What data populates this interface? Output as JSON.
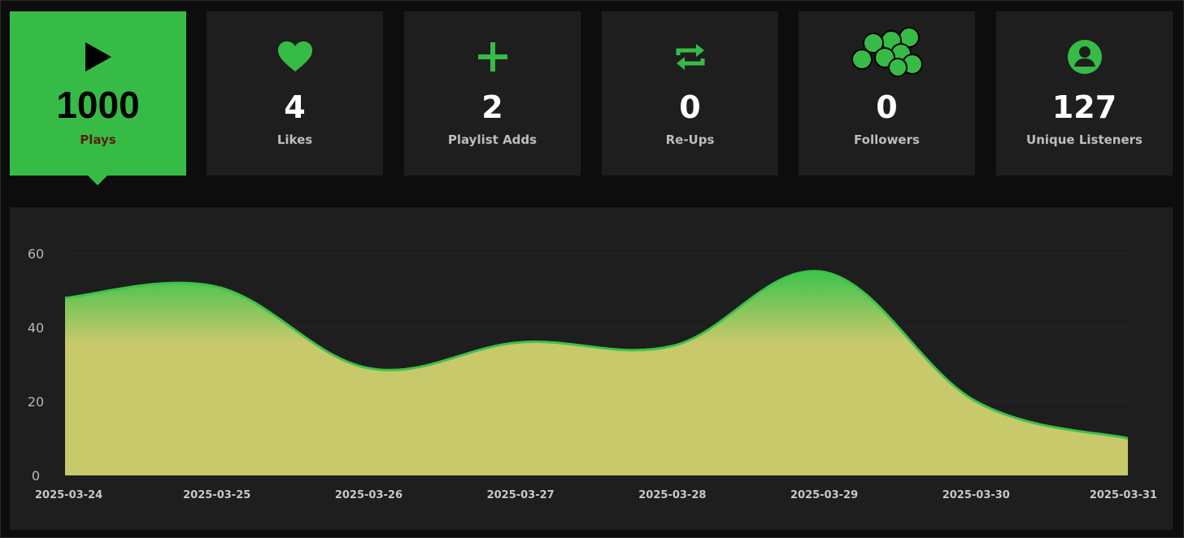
{
  "stats": [
    {
      "icon": "play-icon",
      "value": "1000",
      "label": "Plays",
      "active": true
    },
    {
      "icon": "heart-icon",
      "value": "4",
      "label": "Likes"
    },
    {
      "icon": "plus-icon",
      "value": "2",
      "label": "Playlist Adds"
    },
    {
      "icon": "repost-icon",
      "value": "0",
      "label": "Re-Ups"
    },
    {
      "icon": "followers-icon",
      "value": "0",
      "label": "Followers"
    },
    {
      "icon": "user-circle-icon",
      "value": "127",
      "label": "Unique Listeners"
    }
  ],
  "colors": {
    "accent": "#36bc46",
    "card_bg": "#1e1e1e",
    "area_fill": "#c8c96a",
    "line": "#3cc24a"
  },
  "chart_data": {
    "type": "area",
    "title": "",
    "xlabel": "",
    "ylabel": "",
    "x": [
      "2025-03-24",
      "2025-03-25",
      "2025-03-26",
      "2025-03-27",
      "2025-03-28",
      "2025-03-29",
      "2025-03-30",
      "2025-03-31"
    ],
    "series": [
      {
        "values": [
          48,
          51,
          29,
          36,
          35,
          55,
          20,
          10
        ]
      }
    ],
    "yticks": [
      0,
      20,
      40,
      60
    ],
    "ylim": [
      0,
      60
    ],
    "grid": true,
    "legend": "none"
  }
}
